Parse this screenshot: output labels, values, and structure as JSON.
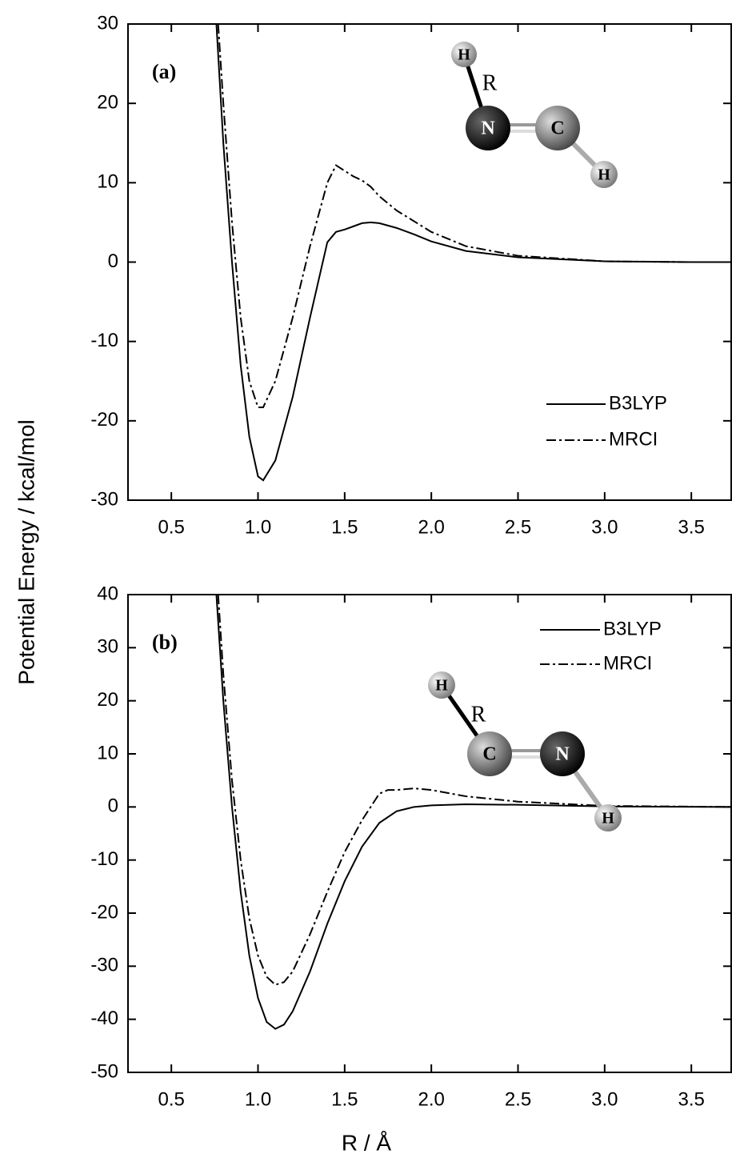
{
  "axis_labels": {
    "y": "Potential Energy / kcal/mol",
    "x": "R / Å"
  },
  "chart_data": [
    {
      "type": "line",
      "annotation": "(a)",
      "legend": "lower right",
      "xlim": [
        0.25,
        3.73
      ],
      "ylim": [
        -30,
        30
      ],
      "xticks": [
        0.5,
        {
          "value": 1,
          "label": "1.0"
        },
        1.5,
        {
          "value": 2,
          "label": "2.0"
        },
        2.5,
        {
          "value": 3,
          "label": "3.0"
        },
        3.5
      ],
      "yticks": [
        -30,
        -20,
        -10,
        0,
        10,
        20,
        30
      ],
      "molecule": {
        "atoms": [
          "H",
          "N",
          "C",
          "H"
        ],
        "bond_label": "R"
      },
      "series": [
        {
          "name": "B3LYP",
          "color": "#000000",
          "linestyle": "solid",
          "x": [
            0.76,
            0.8,
            0.85,
            0.9,
            0.95,
            1.0,
            1.03,
            1.1,
            1.2,
            1.3,
            1.4,
            1.45,
            1.5,
            1.55,
            1.6,
            1.65,
            1.7,
            1.8,
            1.9,
            2.0,
            2.2,
            2.5,
            3.0,
            3.5,
            3.73
          ],
          "values": [
            30,
            15,
            0,
            -13,
            -22,
            -27,
            -27.5,
            -25,
            -17,
            -7,
            2.5,
            3.8,
            4.1,
            4.5,
            4.9,
            5,
            4.9,
            4.3,
            3.5,
            2.6,
            1.4,
            0.6,
            0.1,
            0,
            0
          ]
        },
        {
          "name": "MRCI",
          "color": "#000000",
          "linestyle": "dashdot",
          "x": [
            0.77,
            0.8,
            0.85,
            0.9,
            0.95,
            1.0,
            1.03,
            1.1,
            1.2,
            1.3,
            1.4,
            1.45,
            1.5,
            1.55,
            1.6,
            1.65,
            1.7,
            1.8,
            2.0,
            2.2,
            2.5,
            3.0,
            3.5,
            3.73
          ],
          "values": [
            30,
            20,
            5,
            -7,
            -15,
            -18.3,
            -18.3,
            -15,
            -7,
            2,
            10,
            12.2,
            11.5,
            10.8,
            10.3,
            9.5,
            8.3,
            6.5,
            3.8,
            2,
            0.8,
            0.1,
            0,
            0
          ]
        }
      ]
    },
    {
      "type": "line",
      "annotation": "(b)",
      "legend": "upper right",
      "xlim": [
        0.25,
        3.73
      ],
      "ylim": [
        -50,
        40
      ],
      "xticks": [
        0.5,
        {
          "value": 1,
          "label": "1.0"
        },
        1.5,
        {
          "value": 2,
          "label": "2.0"
        },
        2.5,
        {
          "value": 3,
          "label": "3.0"
        },
        3.5
      ],
      "yticks": [
        -50,
        -40,
        -30,
        -20,
        -10,
        0,
        10,
        20,
        30,
        40
      ],
      "molecule": {
        "atoms": [
          "H",
          "C",
          "N",
          "H"
        ],
        "bond_label": "R"
      },
      "series": [
        {
          "name": "B3LYP",
          "color": "#000000",
          "linestyle": "solid",
          "x": [
            0.76,
            0.8,
            0.85,
            0.9,
            0.95,
            1.0,
            1.05,
            1.1,
            1.15,
            1.2,
            1.3,
            1.4,
            1.5,
            1.6,
            1.7,
            1.8,
            1.9,
            2.0,
            2.2,
            2.5,
            3.0,
            3.73
          ],
          "values": [
            40,
            20,
            0,
            -16,
            -28,
            -36,
            -40.5,
            -41.8,
            -41,
            -38.5,
            -31,
            -22,
            -14,
            -7.5,
            -3,
            -0.8,
            0,
            0.3,
            0.5,
            0.4,
            0.1,
            0
          ]
        },
        {
          "name": "MRCI",
          "color": "#000000",
          "linestyle": "dashdot",
          "x": [
            0.77,
            0.8,
            0.85,
            0.9,
            0.95,
            1.0,
            1.05,
            1.1,
            1.15,
            1.2,
            1.3,
            1.4,
            1.5,
            1.6,
            1.7,
            1.75,
            1.8,
            1.9,
            2.0,
            2.2,
            2.5,
            3.0,
            3.73
          ],
          "values": [
            40,
            25,
            5,
            -10,
            -21,
            -28,
            -32,
            -33.5,
            -33,
            -31,
            -24,
            -16,
            -8.5,
            -2.5,
            2.5,
            3.2,
            3.2,
            3.5,
            3.2,
            2,
            1,
            0.2,
            0
          ]
        }
      ]
    }
  ]
}
